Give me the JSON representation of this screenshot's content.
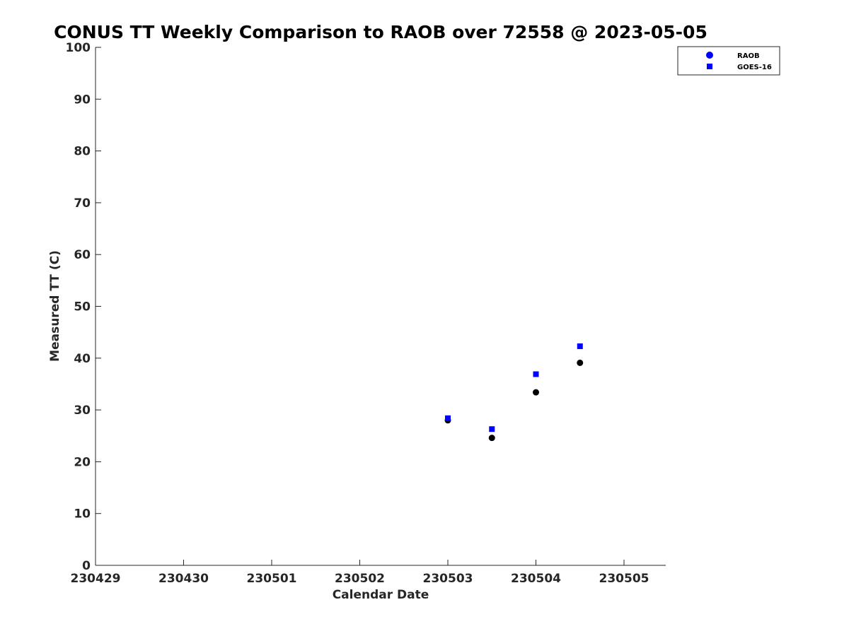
{
  "chart_data": {
    "type": "scatter",
    "title": "CONUS TT Weekly Comparison to RAOB over 72558 @ 2023-05-05",
    "xlabel": "Calendar Date",
    "ylabel": "Measured TT (C)",
    "x_ticks": [
      "230429",
      "230430",
      "230501",
      "230502",
      "230503",
      "230504",
      "230505"
    ],
    "y_ticks": [
      "0",
      "10",
      "20",
      "30",
      "40",
      "50",
      "60",
      "70",
      "80",
      "90",
      "100"
    ],
    "ylim": [
      0,
      100
    ],
    "grid": false,
    "legend_position": "top-right",
    "series": [
      {
        "name": "RAOB",
        "marker": "circle",
        "color": "#000000",
        "legend_color": "#0000ff",
        "points": [
          {
            "x": "2023-05-03 00:00",
            "y": 28.0
          },
          {
            "x": "2023-05-03 12:00",
            "y": 24.6
          },
          {
            "x": "2023-05-04 00:00",
            "y": 33.4
          },
          {
            "x": "2023-05-04 12:00",
            "y": 39.1
          }
        ]
      },
      {
        "name": "GOES-16",
        "marker": "square",
        "color": "#0000ff",
        "legend_color": "#0000ff",
        "points": [
          {
            "x": "2023-05-03 00:00",
            "y": 28.4
          },
          {
            "x": "2023-05-03 12:00",
            "y": 26.3
          },
          {
            "x": "2023-05-04 00:00",
            "y": 36.9
          },
          {
            "x": "2023-05-04 12:00",
            "y": 42.3
          }
        ]
      }
    ]
  }
}
